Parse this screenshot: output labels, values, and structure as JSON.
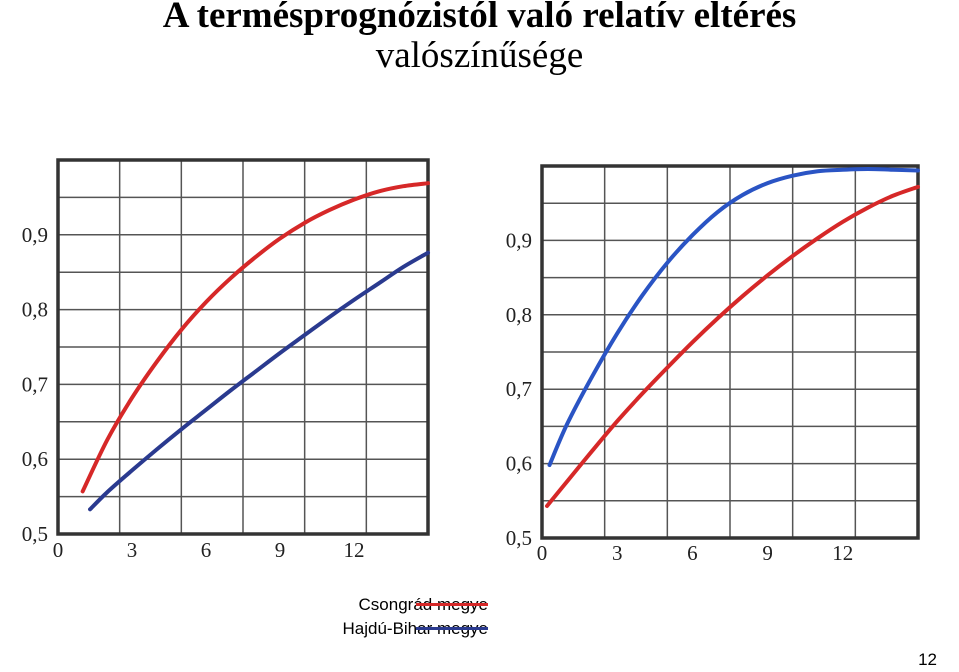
{
  "title": {
    "line1": "A termésprognózistól való relatív eltérés",
    "line2": "valószínűsége"
  },
  "legend": {
    "items": [
      {
        "label": "Csongrád megye",
        "color": "#d62828"
      },
      {
        "label": "Hajdú-Bihar megye",
        "color": "#2a3a8f"
      }
    ]
  },
  "page_number": "12",
  "chart_data": [
    {
      "type": "line",
      "title": "",
      "xlabel": "",
      "ylabel": "",
      "xlim": [
        0,
        15
      ],
      "ylim": [
        0.5,
        1.0
      ],
      "x_ticks": [
        0,
        3,
        6,
        9,
        12
      ],
      "x_tick_labels": [
        "0",
        "3",
        "6",
        "9",
        "12"
      ],
      "y_ticks": [
        0.5,
        0.6,
        0.7,
        0.8,
        0.9
      ],
      "y_tick_labels": [
        "0,5",
        "0,6",
        "0,7",
        "0,8",
        "0,9"
      ],
      "grid": true,
      "series": [
        {
          "name": "Csongrád megye",
          "color": "#d62828",
          "points": [
            [
              1.0,
              0.557
            ],
            [
              2.0,
              0.626
            ],
            [
              3.0,
              0.682
            ],
            [
              4.0,
              0.73
            ],
            [
              5.0,
              0.773
            ],
            [
              6.0,
              0.81
            ],
            [
              7.0,
              0.842
            ],
            [
              8.0,
              0.87
            ],
            [
              9.0,
              0.895
            ],
            [
              10.0,
              0.916
            ],
            [
              11.0,
              0.933
            ],
            [
              12.0,
              0.947
            ],
            [
              13.0,
              0.958
            ],
            [
              14.0,
              0.965
            ],
            [
              15.0,
              0.969
            ]
          ]
        },
        {
          "name": "Hajdú-Bihar megye",
          "color": "#2a3a8f",
          "points": [
            [
              1.3,
              0.533
            ],
            [
              2.0,
              0.556
            ],
            [
              3.0,
              0.585
            ],
            [
              4.0,
              0.613
            ],
            [
              5.0,
              0.64
            ],
            [
              6.0,
              0.666
            ],
            [
              7.0,
              0.692
            ],
            [
              8.0,
              0.717
            ],
            [
              9.0,
              0.742
            ],
            [
              10.0,
              0.766
            ],
            [
              11.0,
              0.79
            ],
            [
              12.0,
              0.813
            ],
            [
              13.0,
              0.835
            ],
            [
              14.0,
              0.857
            ],
            [
              15.0,
              0.876
            ]
          ]
        }
      ]
    },
    {
      "type": "line",
      "title": "",
      "xlabel": "",
      "ylabel": "",
      "xlim": [
        0,
        15
      ],
      "ylim": [
        0.5,
        1.0
      ],
      "x_ticks": [
        0,
        3,
        6,
        9,
        12
      ],
      "x_tick_labels": [
        "0",
        "3",
        "6",
        "9",
        "12"
      ],
      "y_ticks": [
        0.5,
        0.6,
        0.7,
        0.8,
        0.9
      ],
      "y_tick_labels": [
        "0,5",
        "0,6",
        "0,7",
        "0,8",
        "0,9"
      ],
      "grid": true,
      "series": [
        {
          "name": "Csongrád megye",
          "color": "#d62828",
          "points": [
            [
              0.2,
              0.543
            ],
            [
              1.0,
              0.576
            ],
            [
              2.0,
              0.617
            ],
            [
              3.0,
              0.657
            ],
            [
              4.0,
              0.694
            ],
            [
              5.0,
              0.729
            ],
            [
              6.0,
              0.763
            ],
            [
              7.0,
              0.795
            ],
            [
              8.0,
              0.825
            ],
            [
              9.0,
              0.853
            ],
            [
              10.0,
              0.879
            ],
            [
              11.0,
              0.903
            ],
            [
              12.0,
              0.925
            ],
            [
              13.0,
              0.944
            ],
            [
              14.0,
              0.96
            ],
            [
              15.0,
              0.972
            ]
          ]
        },
        {
          "name": "Hajdú-Bihar megye",
          "color": "#2a54c4",
          "points": [
            [
              0.3,
              0.598
            ],
            [
              1.0,
              0.653
            ],
            [
              2.0,
              0.717
            ],
            [
              3.0,
              0.775
            ],
            [
              4.0,
              0.826
            ],
            [
              5.0,
              0.87
            ],
            [
              6.0,
              0.907
            ],
            [
              7.0,
              0.938
            ],
            [
              8.0,
              0.961
            ],
            [
              9.0,
              0.977
            ],
            [
              10.0,
              0.987
            ],
            [
              11.0,
              0.993
            ],
            [
              12.0,
              0.995
            ],
            [
              13.0,
              0.996
            ],
            [
              14.0,
              0.995
            ],
            [
              15.0,
              0.994
            ]
          ]
        }
      ]
    }
  ]
}
